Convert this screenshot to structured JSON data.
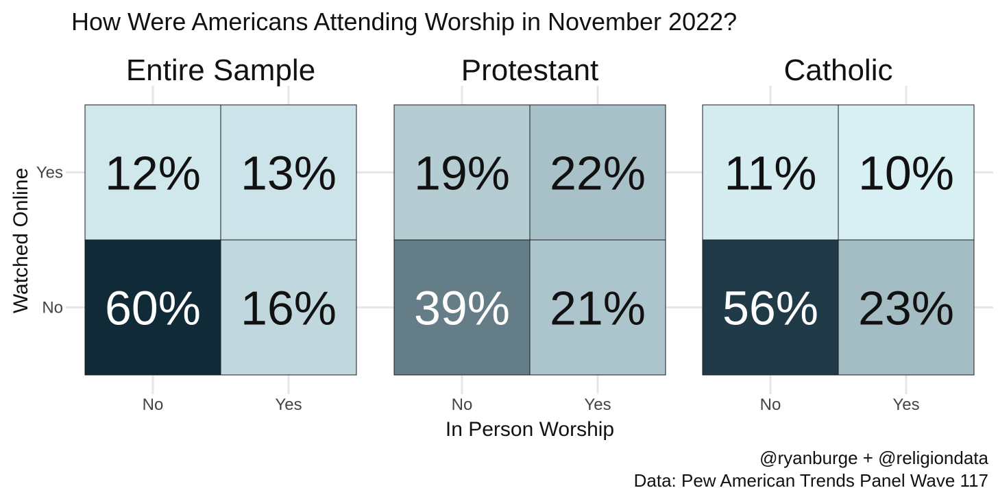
{
  "chart_data": {
    "type": "heatmap",
    "title": "How Were Americans Attending Worship in November 2022?",
    "xlabel": "In Person Worship",
    "ylabel": "Watched Online",
    "x_categories": [
      "No",
      "Yes"
    ],
    "y_categories": [
      "Yes",
      "No"
    ],
    "grid": true,
    "legend": "none",
    "color_scale": {
      "low": "#d8eff4",
      "high": "#112a38"
    },
    "panels": [
      {
        "title": "Entire Sample",
        "cells": [
          {
            "in_person": "No",
            "online": "Yes",
            "value": 12,
            "label": "12%"
          },
          {
            "in_person": "Yes",
            "online": "Yes",
            "value": 13,
            "label": "13%"
          },
          {
            "in_person": "No",
            "online": "No",
            "value": 60,
            "label": "60%"
          },
          {
            "in_person": "Yes",
            "online": "No",
            "value": 16,
            "label": "16%"
          }
        ]
      },
      {
        "title": "Protestant",
        "cells": [
          {
            "in_person": "No",
            "online": "Yes",
            "value": 19,
            "label": "19%"
          },
          {
            "in_person": "Yes",
            "online": "Yes",
            "value": 22,
            "label": "22%"
          },
          {
            "in_person": "No",
            "online": "No",
            "value": 39,
            "label": "39%"
          },
          {
            "in_person": "Yes",
            "online": "No",
            "value": 21,
            "label": "21%"
          }
        ]
      },
      {
        "title": "Catholic",
        "cells": [
          {
            "in_person": "No",
            "online": "Yes",
            "value": 11,
            "label": "11%"
          },
          {
            "in_person": "Yes",
            "online": "Yes",
            "value": 10,
            "label": "10%"
          },
          {
            "in_person": "No",
            "online": "No",
            "value": 56,
            "label": "56%"
          },
          {
            "in_person": "Yes",
            "online": "No",
            "value": 23,
            "label": "23%"
          }
        ]
      }
    ],
    "caption": [
      "@ryanburge + @religiondata",
      "Data: Pew American Trends Panel Wave 117"
    ]
  }
}
